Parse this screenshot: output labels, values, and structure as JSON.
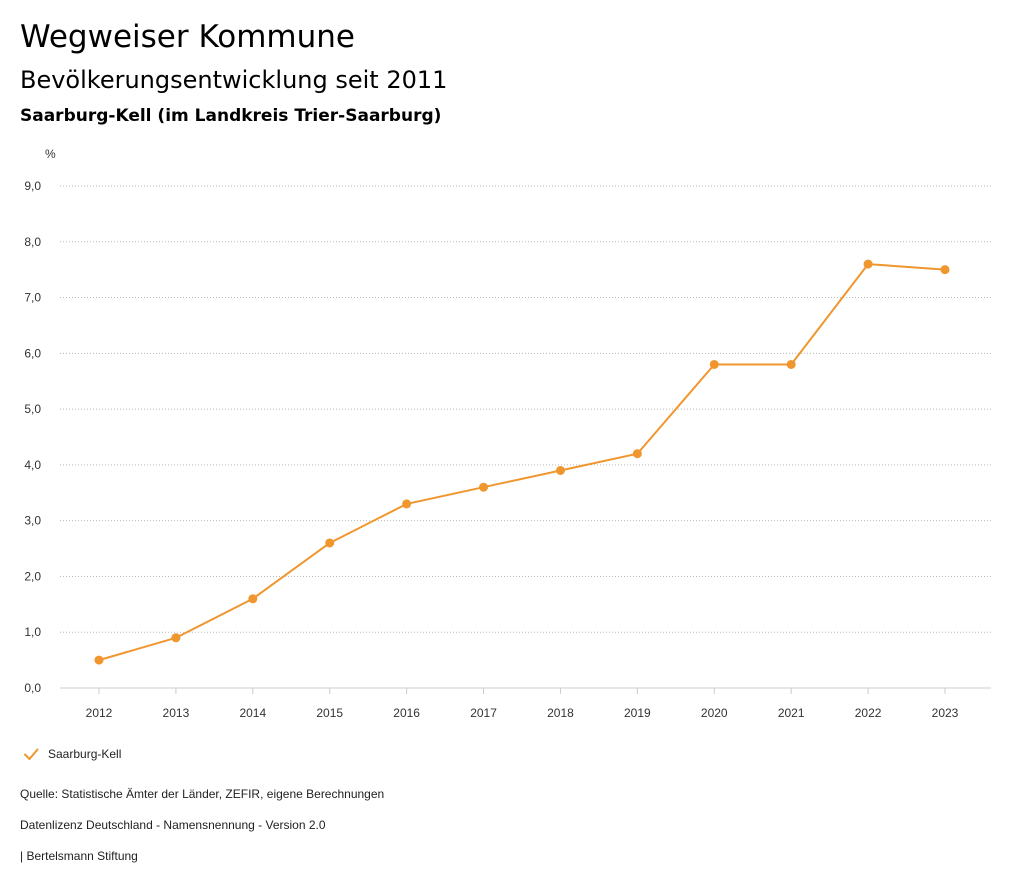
{
  "header": {
    "title": "Wegweiser Kommune",
    "subtitle": "Bevölkerungsentwicklung seit 2011",
    "region": "Saarburg-Kell (im Landkreis Trier-Saarburg)"
  },
  "chart_data": {
    "type": "line",
    "y_unit": "%",
    "x": [
      "2012",
      "2013",
      "2014",
      "2015",
      "2016",
      "2017",
      "2018",
      "2019",
      "2020",
      "2021",
      "2022",
      "2023"
    ],
    "series": [
      {
        "name": "Saarburg-Kell",
        "values": [
          0.5,
          0.9,
          1.6,
          2.6,
          3.3,
          3.6,
          3.9,
          4.2,
          5.8,
          5.8,
          7.6,
          7.5
        ],
        "color": "#f0962e"
      }
    ],
    "ylim": [
      0,
      9
    ],
    "yticks": [
      "0,0",
      "1,0",
      "2,0",
      "3,0",
      "4,0",
      "5,0",
      "6,0",
      "7,0",
      "8,0",
      "9,0"
    ],
    "grid": true,
    "grid_style": "dotted",
    "legend_position": "bottom-left"
  },
  "legend": {
    "label": "Saarburg-Kell"
  },
  "footer": {
    "source": "Quelle: Statistische Ämter der Länder, ZEFIR, eigene Berechnungen",
    "license": "Datenlizenz Deutschland - Namensnennung - Version 2.0",
    "credit": "| Bertelsmann Stiftung"
  }
}
